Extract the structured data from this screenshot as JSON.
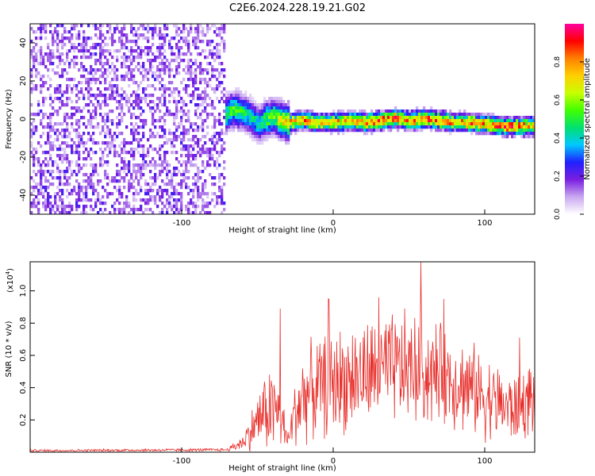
{
  "title": "C2E6.2024.228.19.21.G02",
  "chart_data": [
    {
      "type": "heatmap",
      "xlabel": "Height of straight line (km)",
      "ylabel": "Frequency (Hz)",
      "xlim": [
        -200,
        133
      ],
      "ylim": [
        -50,
        50
      ],
      "xticks": [
        -100,
        0,
        100
      ],
      "xtick_labels": [
        "-100",
        "0",
        "100"
      ],
      "yticks": [
        -40,
        -20,
        0,
        20,
        40
      ],
      "ytick_labels": [
        "-40",
        "-20",
        "0",
        "20",
        "40"
      ],
      "colorbar": {
        "label": "Normalized spectral amplitude",
        "range": [
          0,
          1
        ],
        "ticks": [
          0.0,
          0.2,
          0.4,
          0.6,
          0.8
        ],
        "tick_labels": [
          "0.0",
          "0.2",
          "0.4",
          "0.6",
          "0.8"
        ],
        "colormap": [
          "#ffffff",
          "#c9a8f0",
          "#7a1fe0",
          "#2020ff",
          "#00c8ff",
          "#00e070",
          "#40ff00",
          "#c8ff00",
          "#ffd000",
          "#ff8000",
          "#ff0000",
          "#ff00a0"
        ]
      },
      "noise_region_x": [
        -200,
        -72
      ],
      "signal_track": {
        "x": [
          -72,
          -66,
          -60,
          -55,
          -50,
          -45,
          -40,
          -35,
          -30,
          -20,
          -10,
          0,
          10,
          20,
          30,
          40,
          50,
          60,
          70,
          80,
          90,
          100,
          110,
          120,
          130
        ],
        "freq": [
          3,
          6,
          4,
          2,
          -2,
          1,
          2,
          0,
          -1,
          0,
          -1,
          -1,
          0,
          -1,
          0,
          1,
          0,
          1,
          0,
          -1,
          -1,
          -2,
          -3,
          -3,
          -3
        ],
        "peak_amplitude": [
          0.5,
          0.55,
          0.5,
          0.45,
          0.45,
          0.55,
          0.6,
          0.7,
          0.8,
          0.85,
          0.85,
          0.8,
          0.85,
          0.85,
          0.9,
          0.9,
          0.85,
          0.9,
          0.9,
          0.85,
          0.9,
          0.85,
          0.95,
          0.9,
          0.8
        ]
      }
    },
    {
      "type": "line",
      "xlabel": "Height of straight line (km)",
      "ylabel": "SNR (10 * v/v)",
      "y_multiplier_label": "(x10",
      "y_multiplier_exp": "4",
      "xlim": [
        -200,
        133
      ],
      "ylim": [
        0,
        11800
      ],
      "xticks": [
        -100,
        0,
        100
      ],
      "xtick_labels": [
        "-100",
        "0",
        "100"
      ],
      "yticks": [
        2000,
        4000,
        6000,
        8000,
        10000
      ],
      "ytick_labels": [
        "0.2",
        "0.4",
        "0.6",
        "0.8",
        "1.0"
      ],
      "color": "#e8302c",
      "envelope": {
        "x": [
          -200,
          -70,
          -60,
          -55,
          -50,
          -45,
          -40,
          -35,
          -30,
          -25,
          -20,
          -10,
          0,
          10,
          20,
          30,
          40,
          50,
          60,
          70,
          80,
          90,
          100,
          110,
          120,
          133
        ],
        "median": [
          100,
          150,
          600,
          1200,
          2000,
          2500,
          2800,
          2200,
          700,
          2500,
          3500,
          4000,
          4300,
          4600,
          4800,
          5000,
          5100,
          5200,
          5000,
          4800,
          4500,
          4000,
          3500,
          3000,
          2600,
          3500
        ],
        "spread": [
          80,
          100,
          500,
          1200,
          1800,
          2500,
          3000,
          2500,
          500,
          2500,
          3000,
          3200,
          3500,
          3500,
          3500,
          3500,
          3700,
          3800,
          3500,
          3300,
          3200,
          3000,
          2800,
          2500,
          2300,
          2500
        ]
      },
      "peaks": [
        {
          "x": -35,
          "y": 8900
        },
        {
          "x": -3,
          "y": 9500
        },
        {
          "x": 30,
          "y": 9600
        },
        {
          "x": 58,
          "y": 11800
        },
        {
          "x": 73,
          "y": 9500
        },
        {
          "x": 123,
          "y": 7100
        }
      ]
    }
  ]
}
